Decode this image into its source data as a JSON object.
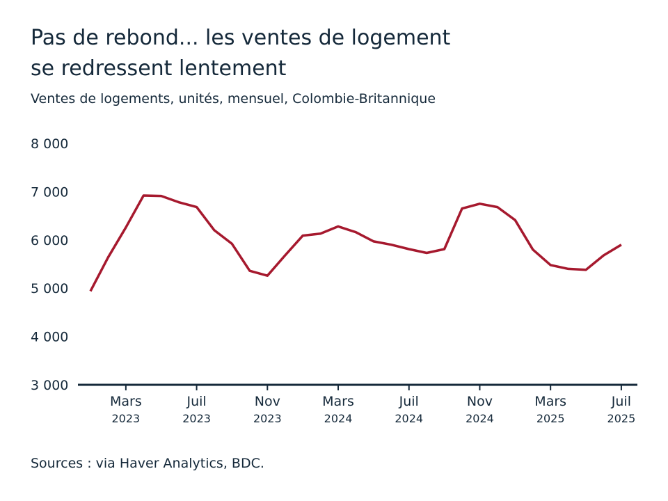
{
  "chart_data": {
    "type": "line",
    "title": [
      "Pas de rebond... les ventes de logement",
      "se redressent lentement"
    ],
    "subtitle": "Ventes de logements, unités, mensuel, Colombie-Britannique",
    "source": "Sources : via Haver Analytics, BDC.",
    "categories": [
      null,
      null,
      {
        "month": "Mars",
        "year": "2023"
      },
      null,
      null,
      null,
      {
        "month": "Juil",
        "year": "2023"
      },
      null,
      null,
      null,
      {
        "month": "Nov",
        "year": "2023"
      },
      null,
      null,
      null,
      {
        "month": "Mars",
        "year": "2024"
      },
      null,
      null,
      null,
      {
        "month": "Juil",
        "year": "2024"
      },
      null,
      null,
      null,
      {
        "month": "Nov",
        "year": "2024"
      },
      null,
      null,
      null,
      {
        "month": "Mars",
        "year": "2025"
      },
      null,
      null,
      null,
      {
        "month": "Juil",
        "year": "2025"
      }
    ],
    "series": [
      {
        "color": "#a6192e",
        "values": [
          4940,
          5640,
          6260,
          6920,
          6910,
          6780,
          6680,
          6200,
          5920,
          5360,
          5260,
          5680,
          6090,
          6130,
          6280,
          6160,
          5970,
          5900,
          5810,
          5730,
          5810,
          6650,
          6750,
          6680,
          6410,
          5800,
          5480,
          5400,
          5380,
          5680,
          5900
        ]
      }
    ],
    "ylim": [
      3000,
      8000
    ],
    "yticks": [
      {
        "value": 3000,
        "label": "3 000"
      },
      {
        "value": 4000,
        "label": "4 000"
      },
      {
        "value": 5000,
        "label": "5 000"
      },
      {
        "value": 6000,
        "label": "6 000"
      },
      {
        "value": 7000,
        "label": "7 000"
      },
      {
        "value": 8000,
        "label": "8 000"
      }
    ]
  }
}
